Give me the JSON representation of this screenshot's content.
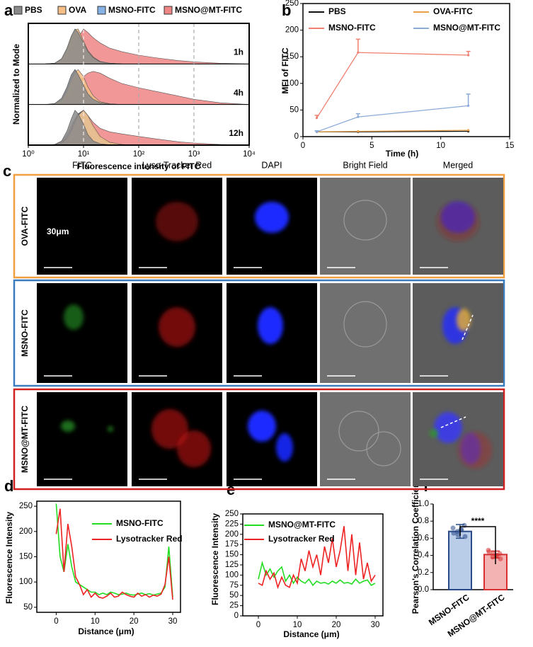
{
  "panel_labels": [
    "a",
    "b",
    "c",
    "d",
    "e",
    "f"
  ],
  "chart_data": [
    {
      "type": "density",
      "xlabel": "Fluorescence intensity of FITC",
      "ylabel": "Normalized to Mode",
      "log_x": true,
      "xlim": [
        1,
        10000
      ],
      "xticks": [
        {
          "value": 1,
          "label": "10⁰"
        },
        {
          "value": 10,
          "label": "10¹"
        },
        {
          "value": 100,
          "label": "10²"
        },
        {
          "value": 1000,
          "label": "10³"
        },
        {
          "value": 10000,
          "label": "10⁴"
        }
      ],
      "ylim": [
        0,
        100
      ],
      "reference_lines": [
        10,
        100,
        1000
      ],
      "x": [
        1,
        2,
        3,
        4,
        5,
        6,
        7,
        8,
        10,
        12,
        15,
        20,
        30,
        50,
        100,
        200,
        500,
        1000,
        3000,
        10000
      ],
      "series": [
        {
          "name": "PBS",
          "color": "#8a8a8a"
        },
        {
          "name": "OVA",
          "color": "#f6bf85"
        },
        {
          "name": "MSNO-FITC",
          "color": "#86b2e6"
        },
        {
          "name": "MSNO@MT-FITC",
          "color": "#ef8585"
        }
      ],
      "panels": [
        {
          "label": "1h",
          "values": [
            [
              0,
              0,
              2,
              15,
              45,
              80,
              100,
              90,
              60,
              35,
              18,
              6,
              2,
              0,
              0,
              0,
              0,
              0,
              0,
              0
            ],
            [
              0,
              0,
              2,
              14,
              42,
              78,
              98,
              100,
              65,
              38,
              20,
              7,
              2,
              0,
              0,
              0,
              0,
              0,
              0,
              0
            ],
            [
              0,
              0,
              2,
              12,
              40,
              75,
              100,
              95,
              65,
              38,
              20,
              7,
              2,
              0,
              0,
              0,
              0,
              0,
              0,
              0
            ],
            [
              0,
              0,
              1,
              6,
              18,
              35,
              55,
              75,
              100,
              90,
              75,
              60,
              45,
              35,
              25,
              18,
              10,
              6,
              2,
              0
            ]
          ]
        },
        {
          "label": "4h",
          "values": [
            [
              0,
              0,
              3,
              18,
              50,
              85,
              100,
              85,
              55,
              30,
              15,
              5,
              1,
              0,
              0,
              0,
              0,
              0,
              0,
              0
            ],
            [
              0,
              0,
              2,
              12,
              38,
              70,
              92,
              100,
              80,
              50,
              25,
              8,
              2,
              0,
              0,
              0,
              0,
              0,
              0,
              0
            ],
            [
              0,
              0,
              2,
              14,
              45,
              80,
              100,
              90,
              60,
              35,
              18,
              6,
              2,
              0,
              0,
              0,
              0,
              0,
              0,
              0
            ],
            [
              0,
              0,
              1,
              5,
              15,
              30,
              45,
              60,
              80,
              90,
              95,
              90,
              75,
              60,
              48,
              38,
              25,
              15,
              5,
              0
            ]
          ]
        },
        {
          "label": "12h",
          "values": [
            [
              0,
              0,
              2,
              12,
              40,
              75,
              100,
              90,
              60,
              30,
              12,
              4,
              1,
              0,
              0,
              0,
              0,
              0,
              0,
              0
            ],
            [
              0,
              0,
              1,
              5,
              18,
              40,
              65,
              85,
              100,
              85,
              55,
              25,
              8,
              2,
              0,
              0,
              0,
              0,
              0,
              0
            ],
            [
              0,
              0,
              1,
              6,
              22,
              45,
              70,
              88,
              100,
              80,
              50,
              20,
              6,
              1,
              0,
              0,
              0,
              0,
              0,
              0
            ],
            [
              0,
              0,
              2,
              10,
              30,
              55,
              75,
              90,
              100,
              85,
              65,
              48,
              38,
              32,
              25,
              18,
              10,
              6,
              2,
              0
            ]
          ]
        }
      ]
    },
    {
      "type": "line",
      "xlabel": "Time (h)",
      "ylabel": "MFI of FITC",
      "xlim": [
        0,
        15
      ],
      "xticks": [
        0,
        5,
        10,
        15
      ],
      "ylim": [
        0,
        250
      ],
      "yticks": [
        0,
        50,
        100,
        150,
        200,
        250
      ],
      "x": [
        1,
        4,
        12
      ],
      "series": [
        {
          "name": "PBS",
          "color": "#111111",
          "values": [
            9,
            9,
            10
          ]
        },
        {
          "name": "OVA-FITC",
          "color": "#e8a04a",
          "values": [
            9,
            10,
            12
          ]
        },
        {
          "name": "MSNO-FITC",
          "color": "#f08070",
          "values": [
            35,
            158,
            153
          ],
          "errors": [
            5,
            25,
            7
          ]
        },
        {
          "name": "MSNO@MT-FITC",
          "color": "#8aaad8",
          "values": [
            9,
            37,
            58
          ],
          "errors": [
            2,
            6,
            22
          ]
        }
      ]
    },
    {
      "type": "line",
      "xlabel": "Distance (μm)",
      "ylabel": "Fluorescence Intensity",
      "xlim": [
        -5,
        32
      ],
      "xticks": [
        0,
        10,
        20,
        30
      ],
      "ylim": [
        40,
        260
      ],
      "yticks": [
        50,
        100,
        150,
        200,
        250
      ],
      "x": [
        0,
        1,
        2,
        3,
        4,
        5,
        6,
        7,
        8,
        9,
        10,
        11,
        12,
        13,
        14,
        15,
        16,
        17,
        18,
        19,
        20,
        21,
        22,
        23,
        24,
        25,
        26,
        27,
        28,
        29,
        30
      ],
      "series": [
        {
          "name": "MSNO-FITC",
          "color": "#22dd22",
          "values": [
            255,
            150,
            120,
            175,
            130,
            100,
            95,
            90,
            85,
            80,
            80,
            75,
            78,
            75,
            80,
            78,
            75,
            76,
            78,
            75,
            74,
            76,
            78,
            75,
            77,
            74,
            76,
            78,
            90,
            170,
            70
          ]
        },
        {
          "name": "Lysotracker Red",
          "color": "#ee2222",
          "values": [
            195,
            245,
            120,
            215,
            170,
            110,
            95,
            75,
            85,
            70,
            78,
            70,
            68,
            72,
            78,
            70,
            72,
            80,
            75,
            72,
            70,
            78,
            72,
            75,
            70,
            74,
            72,
            76,
            95,
            150,
            65
          ]
        }
      ]
    },
    {
      "type": "line",
      "xlabel": "Distance (μm)",
      "ylabel": "Fluorescence Intensity",
      "xlim": [
        -4,
        32
      ],
      "xticks": [
        0,
        10,
        20,
        30
      ],
      "ylim": [
        0,
        250
      ],
      "yticks": [
        0,
        25,
        50,
        75,
        100,
        125,
        150,
        175,
        200,
        225,
        250
      ],
      "x": [
        0,
        1,
        2,
        3,
        4,
        5,
        6,
        7,
        8,
        9,
        10,
        11,
        12,
        13,
        14,
        15,
        16,
        17,
        18,
        19,
        20,
        21,
        22,
        23,
        24,
        25,
        26,
        27,
        28,
        29,
        30
      ],
      "series": [
        {
          "name": "MSNO@MT-FITC",
          "color": "#22dd22",
          "values": [
            90,
            130,
            100,
            115,
            95,
            110,
            120,
            85,
            100,
            80,
            95,
            85,
            80,
            90,
            75,
            85,
            80,
            82,
            78,
            85,
            80,
            88,
            80,
            82,
            78,
            90,
            80,
            85,
            88,
            75,
            80
          ]
        },
        {
          "name": "Lysotracker Red",
          "color": "#ee2222",
          "values": [
            80,
            75,
            110,
            90,
            105,
            70,
            95,
            75,
            70,
            100,
            80,
            140,
            110,
            160,
            120,
            150,
            100,
            170,
            130,
            190,
            120,
            160,
            220,
            110,
            200,
            100,
            180,
            90,
            130,
            85,
            100
          ]
        }
      ]
    },
    {
      "type": "bar",
      "ylabel": "Pearson's Correlation Coefficient",
      "categories": [
        "MSNO-FITC",
        "MSNO@MT-FITC"
      ],
      "values": [
        0.68,
        0.41
      ],
      "errors": [
        0.08,
        0.04
      ],
      "colors": [
        "#b9cde9",
        "#f4b3b3"
      ],
      "edge_colors": [
        "#2a4a8a",
        "#d63030"
      ],
      "points": [
        [
          0.72,
          0.75,
          0.7,
          0.68,
          0.66,
          0.62,
          0.7,
          0.64
        ],
        [
          0.46,
          0.42,
          0.4,
          0.38,
          0.44,
          0.36,
          0.4,
          0.43
        ]
      ],
      "significance": "****",
      "ylim": [
        0,
        1.0
      ],
      "yticks": [
        {
          "value": 0,
          "label": "0.0"
        },
        0.2,
        0.4,
        0.6,
        0.8,
        {
          "value": 1.0,
          "label": "1.0"
        }
      ]
    }
  ],
  "microscopy": {
    "columns": [
      "FITC",
      "Lyso-Tracker Red",
      "DAPI",
      "Bright Field",
      "Merged"
    ],
    "rows": [
      "OVA-FITC",
      "MSNO-FITC",
      "MSNO@MT-FITC"
    ],
    "scale_bar": "30μm"
  }
}
